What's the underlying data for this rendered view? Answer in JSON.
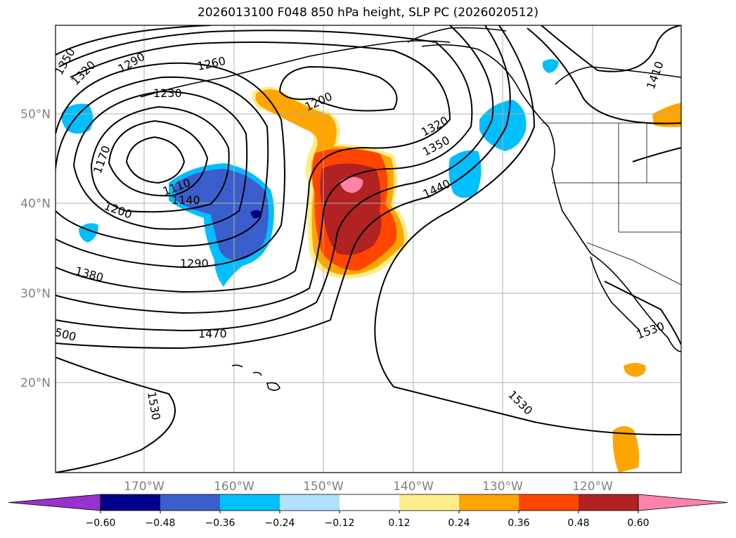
{
  "title": "2026013100 F048 850 hPa height, SLP PC (2026020512)",
  "map": {
    "lon_labels": [
      "170°W",
      "160°W",
      "150°W",
      "140°W",
      "130°W",
      "120°W"
    ],
    "lat_labels": [
      "50°N",
      "40°N",
      "30°N",
      "20°N"
    ],
    "contour_labels": [
      "1350",
      "1320",
      "1290",
      "1260",
      "1230",
      "1200",
      "1170",
      "1110",
      "1140",
      "1200",
      "1290",
      "1380",
      "500",
      "1470",
      "1530",
      "1320",
      "1350",
      "1440",
      "1410",
      "1530",
      "1530"
    ],
    "coast_color": "#000000",
    "grid_color": "#b0b0b0"
  },
  "colorbar": {
    "ticks": [
      "−0.60",
      "−0.48",
      "−0.36",
      "−0.24",
      "−0.12",
      "0.12",
      "0.24",
      "0.36",
      "0.48",
      "0.60"
    ],
    "colors": [
      "#9932cc",
      "#00008b",
      "#3a5fcd",
      "#00bfff",
      "#b0e2ff",
      "#ffffff",
      "#ffec8b",
      "#ffa500",
      "#ff4500",
      "#b22222",
      "#ff82ab"
    ]
  }
}
